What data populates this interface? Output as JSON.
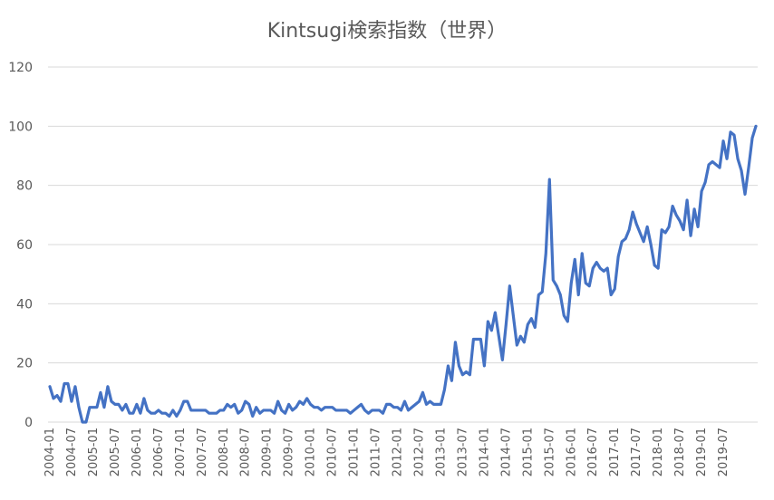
{
  "chart_data": {
    "type": "line",
    "title": "Kintsugi検索指数（世界）",
    "xlabel": "",
    "ylabel": "",
    "ylim": [
      0,
      120
    ],
    "yticks": [
      0,
      20,
      40,
      60,
      80,
      100,
      120
    ],
    "grid": "horizontal",
    "legend": "none",
    "line_color": "#4472C4",
    "grid_color": "#d9d9d9",
    "x_tick_labels": [
      "2004-01",
      "2004-07",
      "2005-01",
      "2005-07",
      "2006-01",
      "2006-07",
      "2007-01",
      "2007-07",
      "2008-01",
      "2008-07",
      "2009-01",
      "2009-07",
      "2010-01",
      "2010-07",
      "2011-01",
      "2011-07",
      "2012-01",
      "2012-07",
      "2013-01",
      "2013-07",
      "2014-01",
      "2014-07",
      "2015-01",
      "2015-07",
      "2016-01",
      "2016-07",
      "2017-01",
      "2017-07",
      "2018-01",
      "2018-07",
      "2019-01",
      "2019-07"
    ],
    "x_start": "2004-01",
    "values": [
      12,
      8,
      9,
      7,
      13,
      13,
      7,
      12,
      5,
      0,
      0,
      5,
      5,
      5,
      10,
      5,
      12,
      7,
      6,
      6,
      4,
      6,
      3,
      3,
      6,
      3,
      8,
      4,
      3,
      3,
      4,
      3,
      3,
      2,
      4,
      2,
      4,
      7,
      7,
      4,
      4,
      4,
      4,
      4,
      3,
      3,
      3,
      4,
      4,
      6,
      5,
      6,
      3,
      4,
      7,
      6,
      2,
      5,
      3,
      4,
      4,
      4,
      3,
      7,
      4,
      3,
      6,
      4,
      5,
      7,
      6,
      8,
      6,
      5,
      5,
      4,
      5,
      5,
      5,
      4,
      4,
      4,
      4,
      3,
      4,
      5,
      6,
      4,
      3,
      4,
      4,
      4,
      3,
      6,
      6,
      5,
      5,
      4,
      7,
      4,
      5,
      6,
      7,
      10,
      6,
      7,
      6,
      6,
      6,
      11,
      19,
      14,
      27,
      19,
      16,
      17,
      16,
      28,
      28,
      28,
      19,
      34,
      31,
      37,
      29,
      21,
      33,
      46,
      36,
      26,
      29,
      27,
      33,
      35,
      32,
      43,
      44,
      57,
      82,
      48,
      46,
      43,
      36,
      34,
      47,
      55,
      43,
      57,
      47,
      46,
      52,
      54,
      52,
      51,
      52,
      43,
      45,
      56,
      61,
      62,
      65,
      71,
      67,
      64,
      61,
      66,
      60,
      53,
      52,
      65,
      64,
      66,
      73,
      70,
      68,
      65,
      75,
      63,
      72,
      66,
      78,
      81,
      87,
      88,
      87,
      86,
      95,
      89,
      98,
      97,
      89,
      85,
      77,
      86,
      96,
      100
    ]
  }
}
